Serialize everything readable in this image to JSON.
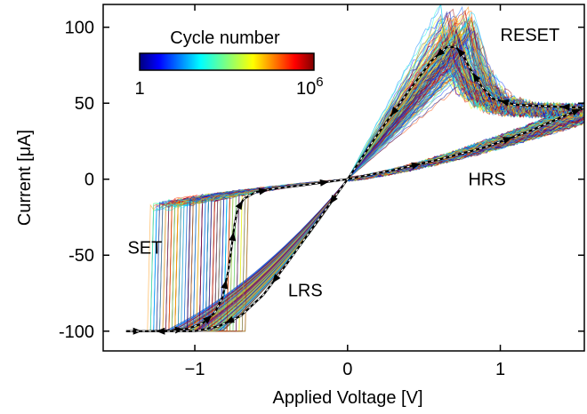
{
  "chart_data": {
    "type": "line",
    "xlabel": "Applied Voltage [V]",
    "ylabel": "Current [μA]",
    "xlim": [
      -1.6,
      1.55
    ],
    "ylim": [
      -113,
      115
    ],
    "x_ticks": [
      {
        "value": -1,
        "label": "−1"
      },
      {
        "value": 0,
        "label": "0"
      },
      {
        "value": 1,
        "label": "1"
      }
    ],
    "y_ticks": [
      {
        "value": 100,
        "label": "100"
      },
      {
        "value": 50,
        "label": "50"
      },
      {
        "value": 0,
        "label": "0"
      },
      {
        "value": -50,
        "label": "-50"
      },
      {
        "value": -100,
        "label": "-100"
      }
    ],
    "colorbar": {
      "title": "Cycle number",
      "min_label": "1",
      "max_label_base": "10",
      "max_label_exp": "6",
      "colormap": "jet",
      "location": "upper-left"
    },
    "annotations": [
      {
        "text": "RESET",
        "x": 1.0,
        "y": 91
      },
      {
        "text": "HRS",
        "x": 0.79,
        "y": -4
      },
      {
        "text": "SET",
        "x": -1.44,
        "y": -49
      },
      {
        "text": "LRS",
        "x": -0.39,
        "y": -77
      }
    ],
    "cycles_drawn": 180,
    "average_curve": {
      "style": "black dashed with arrows",
      "branches": {
        "hrs_from_neg": [
          [
            -1.45,
            -100
          ],
          [
            -1.3,
            -100
          ],
          [
            -1.15,
            -99.5
          ],
          [
            -1.05,
            -98.5
          ],
          [
            -0.95,
            -95
          ],
          [
            -0.87,
            -88
          ],
          [
            -0.82,
            -78
          ],
          [
            -0.78,
            -60
          ],
          [
            -0.76,
            -45
          ],
          [
            -0.74,
            -30
          ],
          [
            -0.72,
            -20
          ],
          [
            -0.68,
            -13
          ],
          [
            -0.6,
            -8.5
          ],
          [
            -0.5,
            -6.5
          ],
          [
            -0.3,
            -4
          ],
          [
            0,
            0
          ],
          [
            0.3,
            6
          ],
          [
            0.6,
            13
          ],
          [
            0.9,
            21
          ],
          [
            1.2,
            32
          ],
          [
            1.45,
            43
          ],
          [
            1.55,
            47
          ]
        ],
        "lrs_back": [
          [
            1.55,
            47
          ],
          [
            1.3,
            48
          ],
          [
            1.1,
            49
          ],
          [
            0.95,
            53
          ],
          [
            0.87,
            62
          ],
          [
            0.8,
            73
          ],
          [
            0.76,
            81
          ],
          [
            0.71,
            87
          ],
          [
            0.65,
            87
          ],
          [
            0.55,
            78
          ],
          [
            0.4,
            58
          ],
          [
            0.2,
            30
          ],
          [
            0,
            0
          ],
          [
            -0.2,
            -28
          ],
          [
            -0.4,
            -56
          ],
          [
            -0.55,
            -76
          ],
          [
            -0.7,
            -90
          ],
          [
            -0.85,
            -97
          ],
          [
            -1.0,
            -100
          ],
          [
            -1.45,
            -100
          ]
        ]
      }
    }
  }
}
